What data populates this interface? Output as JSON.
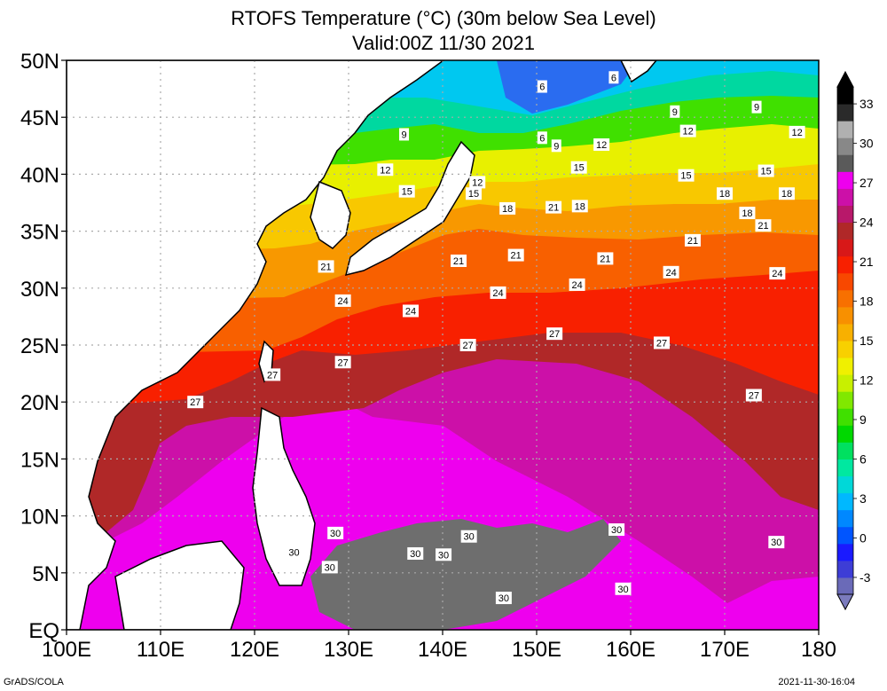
{
  "title": "RTOFS Temperature (°C) (30m below Sea Level)",
  "subtitle": "Valid:00Z 11/30 2021",
  "footer_left": "GrADS/COLA",
  "footer_right": "2021-11-30-16:04",
  "chart_data": {
    "type": "heatmap",
    "xlim": [
      100,
      180
    ],
    "ylim": [
      0,
      50
    ],
    "x_ticks": [
      {
        "value": 100,
        "label": "100E"
      },
      {
        "value": 110,
        "label": "110E"
      },
      {
        "value": 120,
        "label": "120E"
      },
      {
        "value": 130,
        "label": "130E"
      },
      {
        "value": 140,
        "label": "140E"
      },
      {
        "value": 150,
        "label": "150E"
      },
      {
        "value": 160,
        "label": "160E"
      },
      {
        "value": 170,
        "label": "170E"
      },
      {
        "value": 180,
        "label": "180"
      }
    ],
    "y_ticks": [
      {
        "value": 0,
        "label": "EQ"
      },
      {
        "value": 5,
        "label": "5N"
      },
      {
        "value": 10,
        "label": "10N"
      },
      {
        "value": 15,
        "label": "15N"
      },
      {
        "value": 20,
        "label": "20N"
      },
      {
        "value": 25,
        "label": "25N"
      },
      {
        "value": 30,
        "label": "30N"
      },
      {
        "value": 35,
        "label": "35N"
      },
      {
        "value": 40,
        "label": "40N"
      },
      {
        "value": 45,
        "label": "45N"
      },
      {
        "value": 50,
        "label": "50N"
      }
    ],
    "grid": true,
    "colorbar": {
      "labels": [
        "-3",
        "0",
        "3",
        "6",
        "9",
        "12",
        "15",
        "18",
        "21",
        "24",
        "27",
        "30",
        "33"
      ],
      "colors": [
        "#6a6ab8",
        "#3d3dd6",
        "#1a1aff",
        "#0055ff",
        "#0088ff",
        "#00b8ff",
        "#00d8d8",
        "#00e8a0",
        "#00e060",
        "#00d800",
        "#40e000",
        "#80e800",
        "#c8f000",
        "#f0f000",
        "#f8d000",
        "#f8b000",
        "#f89000",
        "#f87000",
        "#f84800",
        "#f82000",
        "#d81818",
        "#b02828",
        "#b8186a",
        "#cc10a8",
        "#ee00ee",
        "#5a5a5a",
        "#888888",
        "#b0b0b0",
        "#2a2a2a",
        "#000000"
      ]
    },
    "contour_labels": [
      {
        "text": "6",
        "lon": 150.6,
        "lat": 47.7
      },
      {
        "text": "6",
        "lon": 158.2,
        "lat": 48.5
      },
      {
        "text": "9",
        "lon": 135.9,
        "lat": 43.5
      },
      {
        "text": "9",
        "lon": 152.1,
        "lat": 42.5
      },
      {
        "text": "9",
        "lon": 164.7,
        "lat": 45.5
      },
      {
        "text": "9",
        "lon": 173.4,
        "lat": 45.9
      },
      {
        "text": "6",
        "lon": 150.6,
        "lat": 43.2
      },
      {
        "text": "12",
        "lon": 133.9,
        "lat": 40.4
      },
      {
        "text": "12",
        "lon": 143.7,
        "lat": 39.3
      },
      {
        "text": "12",
        "lon": 156.9,
        "lat": 42.6
      },
      {
        "text": "12",
        "lon": 166.1,
        "lat": 43.8
      },
      {
        "text": "12",
        "lon": 177.7,
        "lat": 43.7
      },
      {
        "text": "15",
        "lon": 136.2,
        "lat": 38.5
      },
      {
        "text": "15",
        "lon": 143.3,
        "lat": 38.3
      },
      {
        "text": "15",
        "lon": 154.5,
        "lat": 40.6
      },
      {
        "text": "15",
        "lon": 165.9,
        "lat": 39.9
      },
      {
        "text": "15",
        "lon": 174.4,
        "lat": 40.3
      },
      {
        "text": "18",
        "lon": 146.9,
        "lat": 37.0
      },
      {
        "text": "18",
        "lon": 154.6,
        "lat": 37.2
      },
      {
        "text": "18",
        "lon": 170.0,
        "lat": 38.3
      },
      {
        "text": "18",
        "lon": 172.4,
        "lat": 36.6
      },
      {
        "text": "18",
        "lon": 176.6,
        "lat": 38.3
      },
      {
        "text": "21",
        "lon": 151.8,
        "lat": 37.1
      },
      {
        "text": "21",
        "lon": 174.1,
        "lat": 35.5
      },
      {
        "text": "21",
        "lon": 127.6,
        "lat": 31.9
      },
      {
        "text": "21",
        "lon": 141.7,
        "lat": 32.4
      },
      {
        "text": "21",
        "lon": 147.8,
        "lat": 32.9
      },
      {
        "text": "21",
        "lon": 157.3,
        "lat": 32.6
      },
      {
        "text": "21",
        "lon": 166.6,
        "lat": 34.2
      },
      {
        "text": "24",
        "lon": 129.4,
        "lat": 28.9
      },
      {
        "text": "24",
        "lon": 136.6,
        "lat": 28.0
      },
      {
        "text": "24",
        "lon": 145.9,
        "lat": 29.6
      },
      {
        "text": "24",
        "lon": 154.3,
        "lat": 30.3
      },
      {
        "text": "24",
        "lon": 164.3,
        "lat": 31.4
      },
      {
        "text": "24",
        "lon": 175.6,
        "lat": 31.3
      },
      {
        "text": "27",
        "lon": 142.7,
        "lat": 25.0
      },
      {
        "text": "27",
        "lon": 151.9,
        "lat": 26.0
      },
      {
        "text": "27",
        "lon": 163.3,
        "lat": 25.2
      },
      {
        "text": "27",
        "lon": 129.4,
        "lat": 23.5
      },
      {
        "text": "27",
        "lon": 121.9,
        "lat": 22.4
      },
      {
        "text": "27",
        "lon": 113.7,
        "lat": 20.0
      },
      {
        "text": "27",
        "lon": 173.1,
        "lat": 20.6
      },
      {
        "text": "30",
        "lon": 128.6,
        "lat": 8.5
      },
      {
        "text": "30",
        "lon": 124.2,
        "lat": 6.8
      },
      {
        "text": "30",
        "lon": 128.0,
        "lat": 5.5
      },
      {
        "text": "30",
        "lon": 137.1,
        "lat": 6.7
      },
      {
        "text": "30",
        "lon": 140.1,
        "lat": 6.6
      },
      {
        "text": "30",
        "lon": 142.8,
        "lat": 8.2
      },
      {
        "text": "30",
        "lon": 158.5,
        "lat": 8.8
      },
      {
        "text": "30",
        "lon": 175.5,
        "lat": 7.7
      },
      {
        "text": "30",
        "lon": 146.5,
        "lat": 2.8
      },
      {
        "text": "30",
        "lon": 159.2,
        "lat": 3.6
      }
    ]
  }
}
